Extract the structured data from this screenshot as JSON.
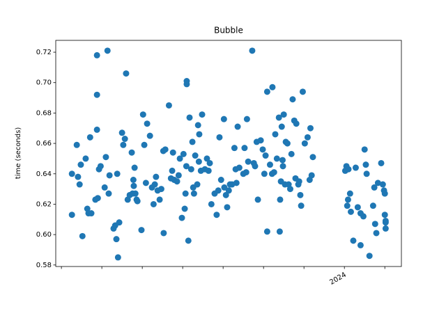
{
  "chart_data": {
    "type": "scatter",
    "title": "Bubble",
    "y_label": "time (seconds)",
    "color": "#1f77b4",
    "xlim": [
      -7.14,
      1.41
    ],
    "xticks": [
      {
        "value": -7,
        "label": null
      },
      {
        "value": -6,
        "label": null
      },
      {
        "value": -5,
        "label": null
      },
      {
        "value": -4,
        "label": null
      },
      {
        "value": -3,
        "label": null
      },
      {
        "value": -2,
        "label": null
      },
      {
        "value": -1,
        "label": null
      },
      {
        "value": 0,
        "label": "2024"
      },
      {
        "value": 1,
        "label": null
      }
    ],
    "ylim": [
      0.579,
      0.7278
    ],
    "yticks": [
      {
        "value": 0.58,
        "label": "0.58"
      },
      {
        "value": 0.6,
        "label": "0.60"
      },
      {
        "value": 0.62,
        "label": "0.62"
      },
      {
        "value": 0.64,
        "label": "0.64"
      },
      {
        "value": 0.66,
        "label": "0.66"
      },
      {
        "value": 0.68,
        "label": "0.68"
      },
      {
        "value": 0.7,
        "label": "0.70"
      },
      {
        "value": 0.72,
        "label": "0.72"
      }
    ],
    "x": [
      -6.74,
      -6.74,
      -6.62,
      -6.59,
      -6.55,
      -6.52,
      -6.48,
      -6.4,
      -6.36,
      -6.33,
      -6.29,
      -6.26,
      -6.16,
      -6.12,
      -6.12,
      -6.12,
      -6.1,
      -6.07,
      -6.03,
      -5.93,
      -5.9,
      -5.86,
      -5.83,
      -5.81,
      -5.71,
      -5.67,
      -5.64,
      -5.62,
      -5.6,
      -5.57,
      -5.5,
      -5.47,
      -5.43,
      -5.4,
      -5.36,
      -5.31,
      -5.26,
      -5.24,
      -5.22,
      -5.21,
      -5.19,
      -5.17,
      -5.14,
      -5.12,
      -5.02,
      -4.98,
      -4.95,
      -4.91,
      -4.88,
      -4.81,
      -4.76,
      -4.72,
      -4.69,
      -4.66,
      -4.62,
      -4.57,
      -4.53,
      -4.48,
      -4.47,
      -4.43,
      -4.34,
      -4.29,
      -4.26,
      -4.24,
      -4.21,
      -4.14,
      -4.1,
      -4.07,
      -4.02,
      -3.98,
      -3.95,
      -3.93,
      -3.91,
      -3.9,
      -3.9,
      -3.86,
      -3.83,
      -3.79,
      -3.76,
      -3.74,
      -3.72,
      -3.69,
      -3.64,
      -3.62,
      -3.6,
      -3.59,
      -3.55,
      -3.52,
      -3.45,
      -3.4,
      -3.36,
      -3.33,
      -3.29,
      -3.21,
      -3.16,
      -3.12,
      -3.09,
      -3.05,
      -2.98,
      -2.97,
      -2.93,
      -2.9,
      -2.86,
      -2.83,
      -2.78,
      -2.72,
      -2.69,
      -2.67,
      -2.64,
      -2.6,
      -2.5,
      -2.47,
      -2.43,
      -2.41,
      -2.38,
      -2.28,
      -2.24,
      -2.21,
      -2.17,
      -2.14,
      -2.07,
      -2.02,
      -1.98,
      -1.95,
      -1.91,
      -1.91,
      -1.84,
      -1.79,
      -1.78,
      -1.74,
      -1.71,
      -1.67,
      -1.62,
      -1.6,
      -1.59,
      -1.57,
      -1.55,
      -1.53,
      -1.52,
      -1.5,
      -1.47,
      -1.45,
      -1.41,
      -1.38,
      -1.34,
      -1.31,
      -1.28,
      -1.24,
      -1.21,
      -1.19,
      -1.14,
      -1.12,
      -1.09,
      -1.07,
      -1.03,
      -0.98,
      -0.91,
      -0.86,
      -0.84,
      -0.81,
      -0.78,
      0.02,
      0.05,
      0.07,
      0.09,
      0.1,
      0.14,
      0.16,
      0.22,
      0.28,
      0.33,
      0.4,
      0.4,
      0.47,
      0.5,
      0.53,
      0.55,
      0.62,
      0.71,
      0.74,
      0.76,
      0.79,
      0.83,
      0.91,
      0.95,
      0.98,
      1.0,
      1.0,
      1.02,
      1.02,
      1.02
    ],
    "values": [
      0.64,
      0.613,
      0.659,
      0.638,
      0.633,
      0.646,
      0.599,
      0.65,
      0.617,
      0.614,
      0.664,
      0.614,
      0.623,
      0.669,
      0.718,
      0.692,
      0.624,
      0.643,
      0.645,
      0.631,
      0.651,
      0.721,
      0.627,
      0.639,
      0.604,
      0.606,
      0.597,
      0.64,
      0.585,
      0.608,
      0.667,
      0.659,
      0.663,
      0.706,
      0.623,
      0.626,
      0.654,
      0.627,
      0.636,
      0.632,
      0.644,
      0.627,
      0.623,
      0.622,
      0.603,
      0.679,
      0.659,
      0.634,
      0.673,
      0.665,
      0.631,
      0.62,
      0.633,
      0.638,
      0.629,
      0.623,
      0.63,
      0.655,
      0.601,
      0.656,
      0.685,
      0.637,
      0.642,
      0.654,
      0.636,
      0.635,
      0.639,
      0.65,
      0.611,
      0.653,
      0.617,
      0.627,
      0.645,
      0.701,
      0.699,
      0.596,
      0.677,
      0.643,
      0.661,
      0.631,
      0.627,
      0.652,
      0.633,
      0.672,
      0.648,
      0.666,
      0.642,
      0.679,
      0.643,
      0.65,
      0.642,
      0.647,
      0.62,
      0.627,
      0.613,
      0.629,
      0.664,
      0.636,
      0.676,
      0.631,
      0.626,
      0.618,
      0.629,
      0.633,
      0.633,
      0.657,
      0.643,
      0.634,
      0.671,
      0.644,
      0.64,
      0.657,
      0.641,
      0.676,
      0.648,
      0.721,
      0.647,
      0.645,
      0.661,
      0.623,
      0.662,
      0.656,
      0.64,
      0.652,
      0.602,
      0.694,
      0.646,
      0.64,
      0.697,
      0.641,
      0.666,
      0.65,
      0.677,
      0.602,
      0.623,
      0.635,
      0.671,
      0.649,
      0.645,
      0.679,
      0.633,
      0.661,
      0.66,
      0.633,
      0.63,
      0.653,
      0.689,
      0.675,
      0.637,
      0.673,
      0.633,
      0.635,
      0.626,
      0.619,
      0.694,
      0.66,
      0.664,
      0.636,
      0.67,
      0.639,
      0.651,
      0.642,
      0.645,
      0.619,
      0.623,
      0.643,
      0.627,
      0.615,
      0.596,
      0.644,
      0.618,
      0.593,
      0.614,
      0.612,
      0.656,
      0.646,
      0.64,
      0.586,
      0.619,
      0.631,
      0.607,
      0.601,
      0.634,
      0.647,
      0.633,
      0.629,
      0.627,
      0.613,
      0.609,
      0.608,
      0.604
    ]
  }
}
